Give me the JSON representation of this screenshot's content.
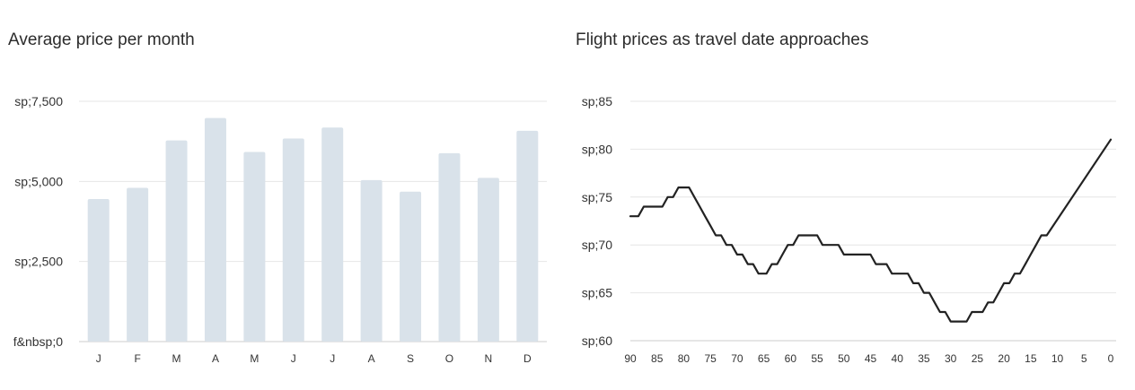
{
  "chart_data": [
    {
      "type": "bar",
      "title": "Average price per month",
      "categories": [
        "J",
        "F",
        "M",
        "A",
        "M",
        "J",
        "J",
        "A",
        "S",
        "O",
        "N",
        "D"
      ],
      "values": [
        4450,
        4800,
        6280,
        6980,
        5920,
        6340,
        6680,
        5040,
        4680,
        5880,
        5110,
        6580
      ],
      "y_tick_labels": [
        "f&nbsp;0",
        "sp;2,500",
        "sp;5,000",
        "sp;7,500"
      ],
      "y_tick_values": [
        0,
        2500,
        5000,
        7500
      ],
      "ylim": [
        0,
        7500
      ],
      "bar_color": "#d9e2ea",
      "grid": true
    },
    {
      "type": "line",
      "title": "Flight prices as travel date approaches",
      "x_tick_labels": [
        "90",
        "85",
        "80",
        "75",
        "70",
        "65",
        "60",
        "55",
        "50",
        "45",
        "40",
        "35",
        "30",
        "25",
        "20",
        "15",
        "10",
        "5",
        "0"
      ],
      "x_tick_values": [
        90,
        85,
        80,
        75,
        70,
        65,
        60,
        55,
        50,
        45,
        40,
        35,
        30,
        25,
        20,
        15,
        10,
        5,
        0
      ],
      "xlim": [
        90,
        0
      ],
      "y_tick_labels": [
        "sp;60",
        "sp;65",
        "sp;70",
        "sp;75",
        "sp;80",
        "sp;85"
      ],
      "y_tick_values": [
        60,
        65,
        70,
        75,
        80,
        85
      ],
      "ylim": [
        60,
        85
      ],
      "line_color": "#222222",
      "grid": true,
      "points": [
        [
          90,
          73
        ],
        [
          88.5,
          73
        ],
        [
          87.5,
          74
        ],
        [
          86.5,
          74
        ],
        [
          85.5,
          74
        ],
        [
          84,
          74
        ],
        [
          83,
          75
        ],
        [
          82,
          75
        ],
        [
          81,
          76
        ],
        [
          80,
          76
        ],
        [
          79,
          76
        ],
        [
          78,
          75
        ],
        [
          77,
          74
        ],
        [
          76,
          73
        ],
        [
          75,
          72
        ],
        [
          74,
          71
        ],
        [
          73,
          71
        ],
        [
          72,
          70
        ],
        [
          71,
          70
        ],
        [
          70,
          69
        ],
        [
          69,
          69
        ],
        [
          68,
          68
        ],
        [
          67,
          68
        ],
        [
          66,
          67
        ],
        [
          64.5,
          67
        ],
        [
          63.5,
          68
        ],
        [
          62.5,
          68
        ],
        [
          61.5,
          69
        ],
        [
          60.5,
          70
        ],
        [
          59.5,
          70
        ],
        [
          58.5,
          71
        ],
        [
          55,
          71
        ],
        [
          54,
          70
        ],
        [
          51,
          70
        ],
        [
          50,
          69
        ],
        [
          45,
          69
        ],
        [
          44,
          68
        ],
        [
          42,
          68
        ],
        [
          41,
          67
        ],
        [
          38,
          67
        ],
        [
          37,
          66
        ],
        [
          36,
          66
        ],
        [
          35,
          65
        ],
        [
          34,
          65
        ],
        [
          33,
          64
        ],
        [
          32,
          63
        ],
        [
          31,
          63
        ],
        [
          30,
          62
        ],
        [
          27,
          62
        ],
        [
          26,
          63
        ],
        [
          24,
          63
        ],
        [
          23,
          64
        ],
        [
          22,
          64
        ],
        [
          21,
          65
        ],
        [
          20,
          66
        ],
        [
          19,
          66
        ],
        [
          18,
          67
        ],
        [
          17,
          67
        ],
        [
          16,
          68
        ],
        [
          15,
          69
        ],
        [
          14,
          70
        ],
        [
          13,
          71
        ],
        [
          12,
          71
        ],
        [
          0,
          81
        ]
      ]
    }
  ]
}
